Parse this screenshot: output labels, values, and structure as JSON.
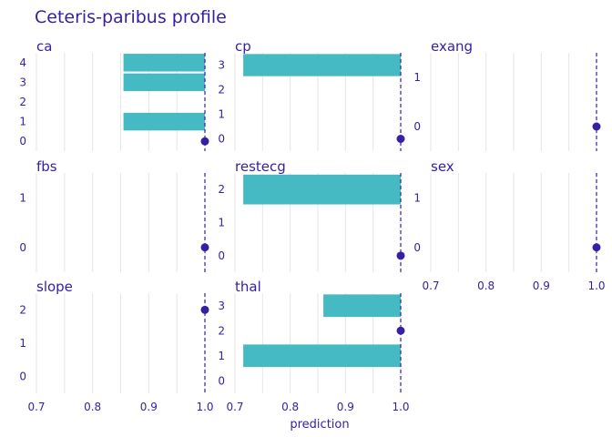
{
  "chart_data": {
    "type": "bar",
    "title": "Ceteris-paribus profile",
    "xlabel": "prediction",
    "xlim": [
      0.7,
      1.0
    ],
    "x_ticks": [
      0.7,
      0.8,
      0.9,
      1.0
    ],
    "x_tick_labels": [
      "0.7",
      "0.8",
      "0.9",
      "1.0"
    ],
    "observation_prediction": 1.0,
    "bar_base": 1.0,
    "colors": {
      "bar": "#46bac2",
      "point": "#371ea3",
      "text": "#371ea3",
      "grid": "#e6e6e6"
    },
    "panels": [
      {
        "variable": "ca",
        "levels": [
          "0",
          "1",
          "2",
          "3",
          "4"
        ],
        "values": [
          1.0,
          0.855,
          1.0,
          0.855,
          0.855
        ],
        "observed": "0"
      },
      {
        "variable": "cp",
        "levels": [
          "0",
          "1",
          "2",
          "3"
        ],
        "values": [
          1.0,
          1.0,
          1.0,
          0.715
        ],
        "observed": "0"
      },
      {
        "variable": "exang",
        "levels": [
          "0",
          "1"
        ],
        "values": [
          1.0,
          1.0
        ],
        "observed": "0"
      },
      {
        "variable": "fbs",
        "levels": [
          "0",
          "1"
        ],
        "values": [
          1.0,
          1.0
        ],
        "observed": "0"
      },
      {
        "variable": "restecg",
        "levels": [
          "0",
          "1",
          "2"
        ],
        "values": [
          1.0,
          1.0,
          0.715
        ],
        "observed": "0"
      },
      {
        "variable": "sex",
        "levels": [
          "0",
          "1"
        ],
        "values": [
          1.0,
          1.0
        ],
        "observed": "0"
      },
      {
        "variable": "slope",
        "levels": [
          "0",
          "1",
          "2"
        ],
        "values": [
          1.0,
          1.0,
          1.0
        ],
        "observed": "2"
      },
      {
        "variable": "thal",
        "levels": [
          "0",
          "1",
          "2",
          "3"
        ],
        "values": [
          1.0,
          0.715,
          1.0,
          0.86
        ],
        "observed": "2"
      }
    ]
  }
}
